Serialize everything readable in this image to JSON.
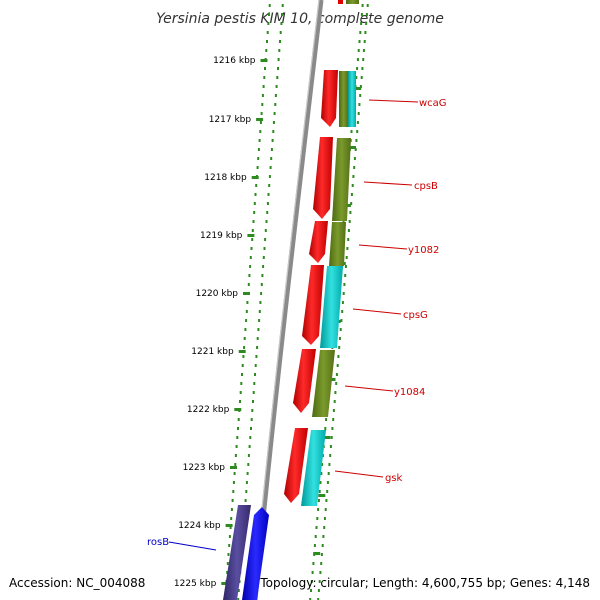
{
  "title": "Yersinia pestis KIM 10, complete genome",
  "footer": {
    "accession": "Accession: NC_004088",
    "summary": "Topology: circular; Length: 4,600,755 bp; Genes: 4,148"
  },
  "ticks": [
    "1216 kbp",
    "1217 kbp",
    "1218 kbp",
    "1219 kbp",
    "1220 kbp",
    "1221 kbp",
    "1222 kbp",
    "1223 kbp",
    "1224 kbp",
    "1225 kbp"
  ],
  "genes": [
    {
      "name": "wcaG",
      "color": "#cc0000"
    },
    {
      "name": "cpsB",
      "color": "#cc0000"
    },
    {
      "name": "y1082",
      "color": "#cc0000"
    },
    {
      "name": "cpsG",
      "color": "#cc0000"
    },
    {
      "name": "y1084",
      "color": "#cc0000"
    },
    {
      "name": "gsk",
      "color": "#cc0000"
    },
    {
      "name": "rosB",
      "color": "#0000cc"
    }
  ],
  "colors": {
    "forward_cds": "#ff0000",
    "cog_olive": "#6b8e23",
    "cog_cyan": "#00cccc",
    "reverse_cds": "#0000ff",
    "reverse_cog": "#4b3f8f",
    "backbone": "#808080",
    "ticks": "#2e8b20"
  }
}
